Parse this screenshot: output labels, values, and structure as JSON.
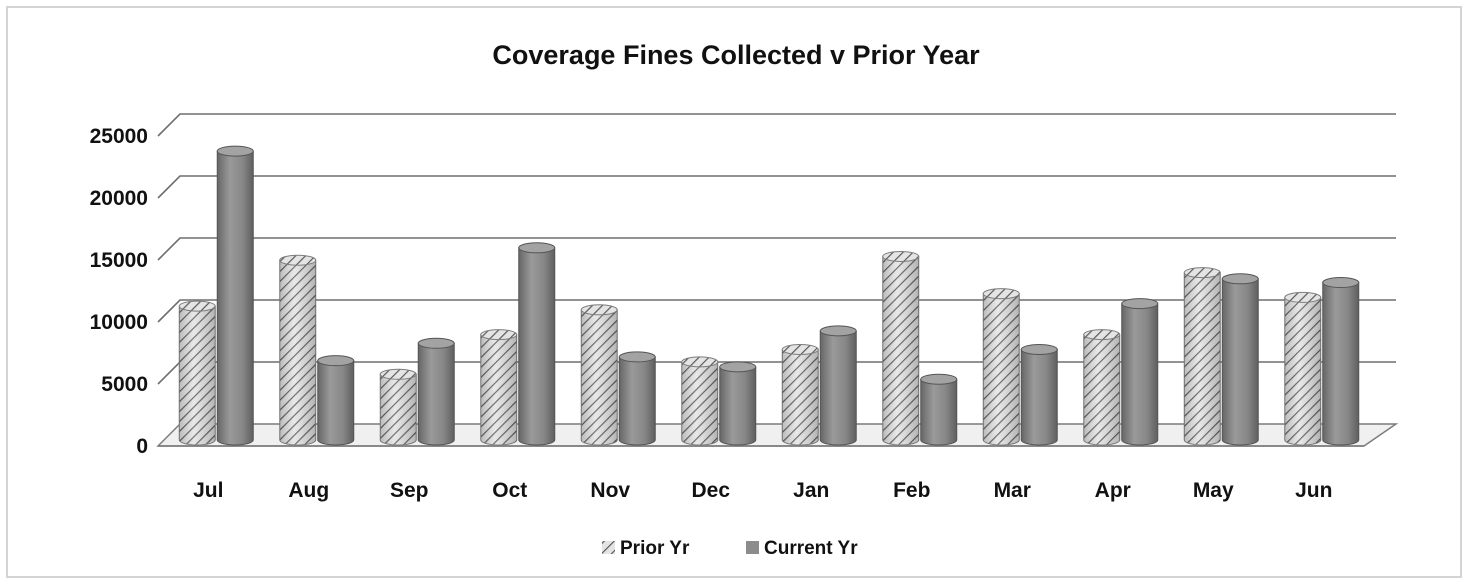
{
  "chart_data": {
    "type": "bar",
    "title": "Coverage Fines Collected v Prior Year",
    "xlabel": "",
    "ylabel": "",
    "categories": [
      "Jul",
      "Aug",
      "Sep",
      "Oct",
      "Nov",
      "Dec",
      "Jan",
      "Feb",
      "Mar",
      "Apr",
      "May",
      "Jun"
    ],
    "series": [
      {
        "name": "Prior Yr",
        "values": [
          10800,
          14500,
          5300,
          8500,
          10500,
          6300,
          7300,
          14800,
          11800,
          8500,
          13500,
          11500
        ],
        "color": "#b9b9b9",
        "pattern": "diagonal-hatch"
      },
      {
        "name": "Current Yr",
        "values": [
          23300,
          6400,
          7800,
          15500,
          6700,
          5900,
          8800,
          4900,
          7300,
          11000,
          13000,
          12700
        ],
        "color": "#8c8c8c",
        "pattern": "solid"
      }
    ],
    "yticks": [
      "0",
      "5000",
      "10000",
      "15000",
      "20000",
      "25000"
    ],
    "ylim": [
      0,
      25000
    ],
    "grid": true,
    "legend_position": "bottom",
    "style": "3d-cylinder"
  }
}
